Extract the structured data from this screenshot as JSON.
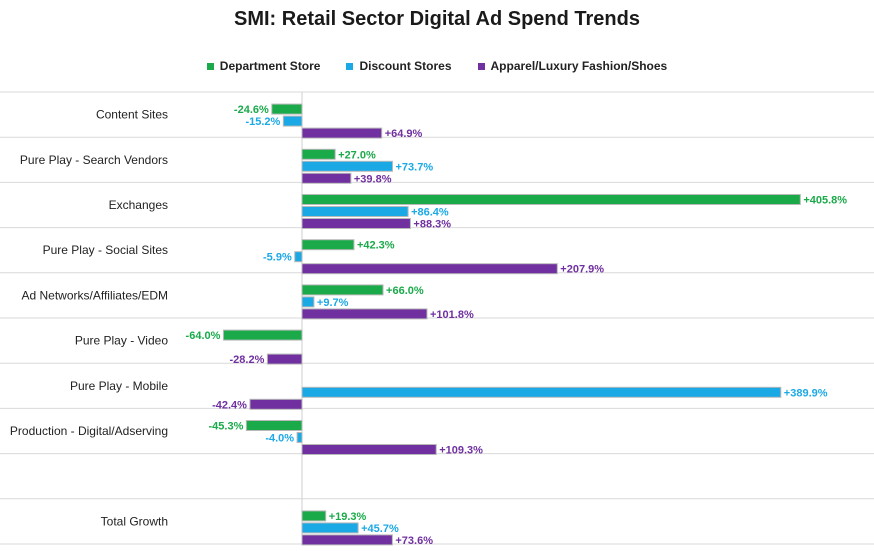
{
  "chart_data": {
    "type": "bar",
    "orientation": "horizontal",
    "title": "SMI: Retail Sector Digital Ad Spend Trends",
    "legend_position": "top",
    "value_suffix": "%",
    "categories": [
      "Content Sites",
      "Pure Play - Search Vendors",
      "Exchanges",
      "Pure Play - Social Sites",
      "Ad Networks/Affiliates/EDM",
      "Pure Play - Video",
      "Pure Play - Mobile",
      "Production - Digital/Adserving",
      "",
      "Total Growth"
    ],
    "series": [
      {
        "name": "Department Store",
        "color": "#1aaa4a",
        "values": [
          -24.6,
          27.0,
          405.8,
          42.3,
          66.0,
          -64.0,
          null,
          -45.3,
          null,
          19.3
        ]
      },
      {
        "name": "Discount Stores",
        "color": "#1ba9e6",
        "values": [
          -15.2,
          73.7,
          86.4,
          -5.9,
          9.7,
          null,
          389.9,
          -4.0,
          null,
          45.7
        ]
      },
      {
        "name": "Apparel/Luxury Fashion/Shoes",
        "color": "#7030a0",
        "values": [
          64.9,
          39.8,
          88.3,
          207.9,
          101.8,
          -28.2,
          -42.4,
          109.3,
          null,
          73.6
        ]
      }
    ],
    "labels": [
      [
        "-24.6%",
        "+27.0%",
        "+405.8%",
        "+42.3%",
        "+66.0%",
        "-64.0%",
        "",
        "-45.3%",
        "",
        "+19.3%"
      ],
      [
        "-15.2%",
        "+73.7%",
        "+86.4%",
        "-5.9%",
        "+9.7%",
        "",
        "+389.9%",
        "-4.0%",
        "",
        "+45.7%"
      ],
      [
        "+64.9%",
        "+39.8%",
        "+88.3%",
        "+207.9%",
        "+101.8%",
        "-28.2%",
        "-42.4%",
        "+109.3%",
        "",
        "+73.6%"
      ]
    ],
    "xlim": [
      -240,
      460
    ],
    "grid": "horizontal-separators"
  }
}
